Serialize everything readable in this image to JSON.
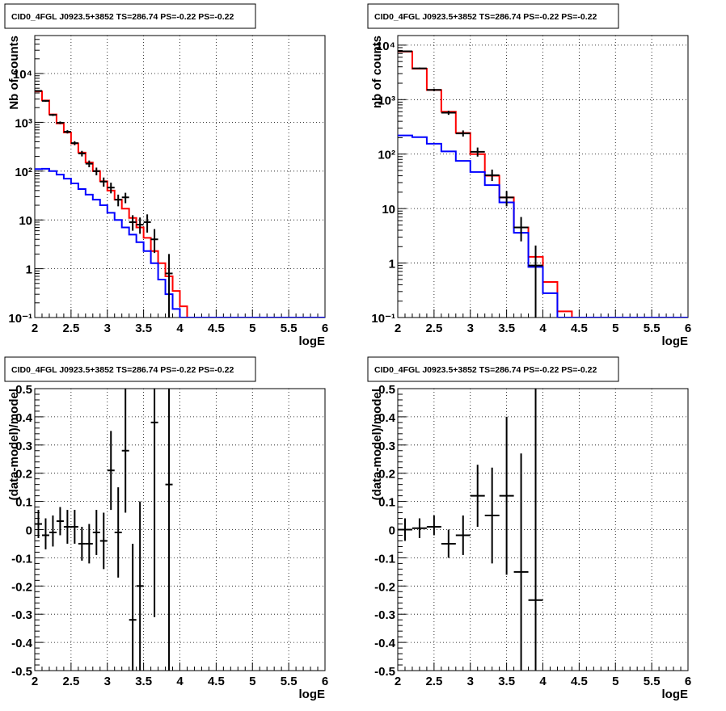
{
  "chart_data": [
    {
      "type": "histogram",
      "title": "CID0_4FGL J0923.5+3852 TS=286.74 PS=-0.22 PS=-0.22",
      "xlabel": "logE",
      "ylabel": "Nb of counts",
      "xlim": [
        2,
        6
      ],
      "ylim": [
        0.1,
        60000
      ],
      "yscale": "log",
      "grid": true,
      "x_ticks": [
        "2",
        "2.5",
        "3",
        "3.5",
        "4",
        "4.5",
        "5",
        "5.5",
        "6"
      ],
      "y_ticks": [
        {
          "v": 0.1,
          "t": "10⁻¹"
        },
        {
          "v": 1,
          "t": "1"
        },
        {
          "v": 10,
          "t": "10"
        },
        {
          "v": 100,
          "t": "10²"
        },
        {
          "v": 1000,
          "t": "10³"
        },
        {
          "v": 10000,
          "t": "10⁴"
        }
      ],
      "bin_edges": [
        2.0,
        2.1,
        2.2,
        2.3,
        2.4,
        2.5,
        2.6,
        2.7,
        2.8,
        2.9,
        3.0,
        3.1,
        3.2,
        3.3,
        3.4,
        3.5,
        3.6,
        3.7,
        3.8,
        3.9,
        4.0,
        4.1,
        4.2,
        4.3,
        4.4,
        4.5,
        4.6,
        4.7,
        4.8,
        4.9,
        5.0,
        5.1,
        5.2,
        5.3,
        5.4,
        5.5,
        5.6,
        5.7,
        5.8,
        5.9,
        6.0
      ],
      "series": [
        {
          "color": "#ff0000",
          "values": [
            4300,
            2800,
            1450,
            950,
            620,
            370,
            240,
            150,
            100,
            62,
            40,
            26,
            17,
            11,
            7,
            4.3,
            2.3,
            1.3,
            0.7,
            0.35,
            0.17,
            0.1,
            0.1,
            0.1,
            0.1,
            0.1,
            0.1,
            0.1,
            0.1,
            0.1,
            0.1,
            0.1,
            0.1,
            0.1,
            0.1,
            0.1,
            0.1,
            0.1,
            0.1,
            0.1
          ]
        },
        {
          "color": "#0000ff",
          "values": [
            110,
            112,
            100,
            85,
            70,
            56,
            43,
            33,
            26,
            20,
            14,
            10,
            7,
            5,
            3.5,
            2.3,
            1.3,
            0.6,
            0.3,
            0.15,
            0.1,
            0.1,
            0.1,
            0.1,
            0.1,
            0.1,
            0.1,
            0.1,
            0.1,
            0.1,
            0.1,
            0.1,
            0.1,
            0.1,
            0.1,
            0.1,
            0.1,
            0.1,
            0.1,
            0.1
          ]
        }
      ],
      "data_points": [
        {
          "x": 2.05,
          "y": 4400,
          "lo": 4270,
          "hi": 4530
        },
        {
          "x": 2.15,
          "y": 2750,
          "lo": 2650,
          "hi": 2850
        },
        {
          "x": 2.25,
          "y": 1420,
          "lo": 1350,
          "hi": 1490
        },
        {
          "x": 2.35,
          "y": 980,
          "lo": 920,
          "hi": 1040
        },
        {
          "x": 2.45,
          "y": 640,
          "lo": 590,
          "hi": 690
        },
        {
          "x": 2.55,
          "y": 375,
          "lo": 340,
          "hi": 410
        },
        {
          "x": 2.65,
          "y": 230,
          "lo": 200,
          "hi": 260
        },
        {
          "x": 2.75,
          "y": 142,
          "lo": 120,
          "hi": 165
        },
        {
          "x": 2.85,
          "y": 100,
          "lo": 82,
          "hi": 118
        },
        {
          "x": 2.95,
          "y": 61,
          "lo": 48,
          "hi": 74
        },
        {
          "x": 3.05,
          "y": 46,
          "lo": 35,
          "hi": 58
        },
        {
          "x": 3.15,
          "y": 26,
          "lo": 19,
          "hi": 33
        },
        {
          "x": 3.25,
          "y": 29,
          "lo": 22,
          "hi": 36
        },
        {
          "x": 3.35,
          "y": 9,
          "lo": 6,
          "hi": 12.5
        },
        {
          "x": 3.45,
          "y": 8,
          "lo": 5.2,
          "hi": 11.2
        },
        {
          "x": 3.55,
          "y": 9,
          "lo": 5.5,
          "hi": 13
        },
        {
          "x": 3.65,
          "y": 4,
          "lo": 2.1,
          "hi": 6.5
        },
        {
          "x": 3.75,
          "y": null,
          "lo": null,
          "hi": null
        },
        {
          "x": 3.85,
          "y": 0.8,
          "lo": 0.1,
          "hi": 2.0
        }
      ]
    },
    {
      "type": "histogram",
      "title": "CID0_4FGL J0923.5+3852 TS=286.74 PS=-0.22 PS=-0.22",
      "xlabel": "logE",
      "ylabel": "nb of counts",
      "xlim": [
        2,
        6
      ],
      "ylim": [
        0.1,
        15000
      ],
      "yscale": "log",
      "grid": true,
      "x_ticks": [
        "2",
        "2.5",
        "3",
        "3.5",
        "4",
        "4.5",
        "5",
        "5.5",
        "6"
      ],
      "y_ticks": [
        {
          "v": 0.1,
          "t": "10⁻¹"
        },
        {
          "v": 1,
          "t": "1"
        },
        {
          "v": 10,
          "t": "10"
        },
        {
          "v": 100,
          "t": "10²"
        },
        {
          "v": 1000,
          "t": "10³"
        },
        {
          "v": 10000,
          "t": "10⁴"
        }
      ],
      "bin_edges": [
        2.0,
        2.2,
        2.4,
        2.6,
        2.8,
        3.0,
        3.2,
        3.4,
        3.6,
        3.8,
        4.0,
        4.2,
        4.4,
        4.6,
        4.8,
        5.0,
        5.2,
        5.4,
        5.6,
        5.8,
        6.0
      ],
      "series": [
        {
          "color": "#ff0000",
          "values": [
            7600,
            3700,
            1500,
            600,
            245,
            100,
            40,
            16,
            4.5,
            1.3,
            0.45,
            0.13,
            0.1,
            0.1,
            0.1,
            0.1,
            0.1,
            0.1,
            0.1,
            0.1
          ]
        },
        {
          "color": "#0000ff",
          "values": [
            220,
            205,
            155,
            112,
            75,
            47,
            27,
            13,
            3.6,
            0.85,
            0.28,
            0.1,
            0.1,
            0.1,
            0.1,
            0.1,
            0.1,
            0.1,
            0.1,
            0.1
          ]
        }
      ],
      "data_points": [
        {
          "x": 2.1,
          "y": 7700,
          "lo": 7520,
          "hi": 7880
        },
        {
          "x": 2.3,
          "y": 3750,
          "lo": 3630,
          "hi": 3870
        },
        {
          "x": 2.5,
          "y": 1510,
          "lo": 1430,
          "hi": 1590
        },
        {
          "x": 2.7,
          "y": 575,
          "lo": 525,
          "hi": 625
        },
        {
          "x": 2.9,
          "y": 240,
          "lo": 210,
          "hi": 272
        },
        {
          "x": 3.1,
          "y": 110,
          "lo": 90,
          "hi": 132
        },
        {
          "x": 3.3,
          "y": 41,
          "lo": 32,
          "hi": 52
        },
        {
          "x": 3.5,
          "y": 16,
          "lo": 11,
          "hi": 21
        },
        {
          "x": 3.7,
          "y": 4.5,
          "lo": 2.5,
          "hi": 7
        },
        {
          "x": 3.9,
          "y": 0.9,
          "lo": 0.1,
          "hi": 2.1
        }
      ]
    },
    {
      "type": "scatter",
      "title": "CID0_4FGL J0923.5+3852 TS=286.74 PS=-0.22 PS=-0.22",
      "xlabel": "logE",
      "ylabel": "(data-model)/model",
      "xlim": [
        2,
        6
      ],
      "ylim": [
        -0.5,
        0.5
      ],
      "grid": true,
      "x_ticks": [
        "2",
        "2.5",
        "3",
        "3.5",
        "4",
        "4.5",
        "5",
        "5.5",
        "6"
      ],
      "y_ticks": [
        "-0.5",
        "-0.4",
        "-0.3",
        "-0.2",
        "-0.1",
        "0",
        "0.1",
        "0.2",
        "0.3",
        "0.4",
        "0.5"
      ],
      "bin_half_width": 0.05,
      "points": [
        {
          "x": 2.05,
          "y": 0.02,
          "lo": -0.03,
          "hi": 0.07
        },
        {
          "x": 2.15,
          "y": -0.02,
          "lo": -0.07,
          "hi": 0.04
        },
        {
          "x": 2.25,
          "y": -0.01,
          "lo": -0.06,
          "hi": 0.05
        },
        {
          "x": 2.35,
          "y": 0.03,
          "lo": -0.02,
          "hi": 0.08
        },
        {
          "x": 2.45,
          "y": 0.01,
          "lo": -0.05,
          "hi": 0.07
        },
        {
          "x": 2.55,
          "y": 0.01,
          "lo": -0.05,
          "hi": 0.07
        },
        {
          "x": 2.65,
          "y": -0.05,
          "lo": -0.11,
          "hi": 0.01
        },
        {
          "x": 2.75,
          "y": -0.05,
          "lo": -0.12,
          "hi": 0.02
        },
        {
          "x": 2.85,
          "y": -0.01,
          "lo": -0.09,
          "hi": 0.07
        },
        {
          "x": 2.95,
          "y": -0.04,
          "lo": -0.14,
          "hi": 0.06
        },
        {
          "x": 3.05,
          "y": 0.21,
          "lo": 0.07,
          "hi": 0.35
        },
        {
          "x": 3.15,
          "y": -0.01,
          "lo": -0.17,
          "hi": 0.15
        },
        {
          "x": 3.25,
          "y": 0.28,
          "lo": 0.06,
          "hi": 0.5
        },
        {
          "x": 3.35,
          "y": -0.32,
          "lo": -0.5,
          "hi": -0.05
        },
        {
          "x": 3.45,
          "y": -0.2,
          "lo": -0.5,
          "hi": 0.1
        },
        {
          "x": 3.65,
          "y": 0.38,
          "lo": -0.31,
          "hi": 0.5
        },
        {
          "x": 3.85,
          "y": 0.16,
          "lo": -0.5,
          "hi": 0.5
        }
      ]
    },
    {
      "type": "scatter",
      "title": "CID0_4FGL J0923.5+3852 TS=286.74 PS=-0.22 PS=-0.22",
      "xlabel": "logE",
      "ylabel": "(data-model)/model",
      "xlim": [
        2,
        6
      ],
      "ylim": [
        -0.5,
        0.5
      ],
      "grid": true,
      "x_ticks": [
        "2",
        "2.5",
        "3",
        "3.5",
        "4",
        "4.5",
        "5",
        "5.5",
        "6"
      ],
      "y_ticks": [
        "-0.5",
        "-0.4",
        "-0.3",
        "-0.2",
        "-0.1",
        "0",
        "0.1",
        "0.2",
        "0.3",
        "0.4",
        "0.5"
      ],
      "bin_half_width": 0.1,
      "points": [
        {
          "x": 2.1,
          "y": 0.0,
          "lo": -0.04,
          "hi": 0.04
        },
        {
          "x": 2.3,
          "y": 0.005,
          "lo": -0.03,
          "hi": 0.04
        },
        {
          "x": 2.5,
          "y": 0.01,
          "lo": -0.02,
          "hi": 0.05
        },
        {
          "x": 2.7,
          "y": -0.05,
          "lo": -0.1,
          "hi": 0.0
        },
        {
          "x": 2.9,
          "y": -0.02,
          "lo": -0.09,
          "hi": 0.05
        },
        {
          "x": 3.1,
          "y": 0.12,
          "lo": 0.01,
          "hi": 0.23
        },
        {
          "x": 3.3,
          "y": 0.05,
          "lo": -0.12,
          "hi": 0.22
        },
        {
          "x": 3.5,
          "y": 0.12,
          "lo": -0.16,
          "hi": 0.4
        },
        {
          "x": 3.7,
          "y": -0.15,
          "lo": -0.5,
          "hi": 0.27
        },
        {
          "x": 3.9,
          "y": -0.25,
          "lo": -0.5,
          "hi": 0.5
        }
      ]
    }
  ]
}
